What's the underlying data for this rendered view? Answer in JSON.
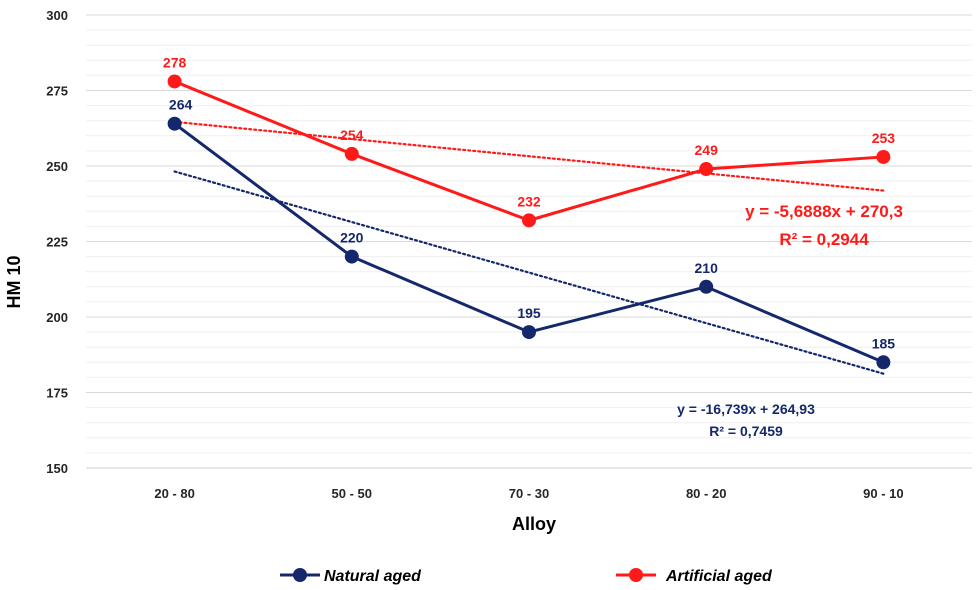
{
  "chart_data": {
    "type": "line",
    "xlabel": "Alloy",
    "ylabel": "HM 10",
    "categories": [
      "20 - 80",
      "50 - 50",
      "70 - 30",
      "80 - 20",
      "90 - 10"
    ],
    "ylim": [
      150,
      300
    ],
    "yticks": [
      150,
      175,
      200,
      225,
      250,
      275,
      300
    ],
    "grid": true,
    "legend_position": "bottom",
    "series": [
      {
        "name": "Natural aged",
        "color": "#14286b",
        "values": [
          264,
          220,
          195,
          210,
          185
        ],
        "labels": [
          "264",
          "220",
          "195",
          "210",
          "185"
        ],
        "trendline": {
          "slope": -16.739,
          "intercept": 264.93,
          "equation": "y = -16,739x + 264,93",
          "r2": "R² = 0,7459"
        }
      },
      {
        "name": "Artificial aged",
        "color": "#ff1a1a",
        "values": [
          278,
          254,
          232,
          249,
          253
        ],
        "labels": [
          "278",
          "254",
          "232",
          "249",
          "253"
        ],
        "trendline": {
          "slope": -5.6888,
          "intercept": 270.3,
          "equation": "y = -5,6888x + 270,3",
          "r2": "R² = 0,2944"
        }
      }
    ]
  }
}
